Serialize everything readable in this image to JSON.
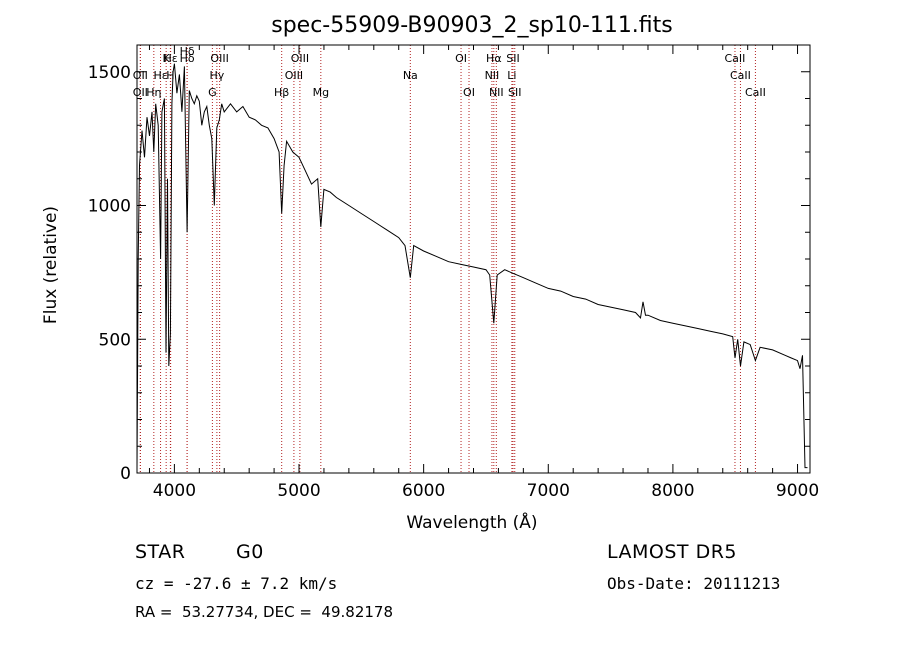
{
  "chart_data": {
    "type": "line",
    "title": "spec-55909-B90903_2_sp10-111.fits",
    "xlabel": "Wavelength (Å)",
    "ylabel": "Flux (relative)",
    "xlim": [
      3700,
      9100
    ],
    "ylim": [
      0,
      1600
    ],
    "x_ticks": [
      4000,
      5000,
      6000,
      7000,
      8000,
      9000
    ],
    "x_tick_labels": [
      "4000",
      "5000",
      "6000",
      "7000",
      "8000",
      "9000"
    ],
    "y_ticks": [
      0,
      500,
      1000,
      1500
    ],
    "y_tick_labels": [
      "0",
      "500",
      "1000",
      "1500"
    ],
    "line_color": "#000000",
    "marker_color": "#b22222",
    "grid": false,
    "series": [
      {
        "x": [
          3700,
          3710,
          3720,
          3740,
          3760,
          3780,
          3800,
          3820,
          3835,
          3850,
          3870,
          3889,
          3900,
          3920,
          3933,
          3945,
          3955,
          3968,
          3980,
          3990,
          4000,
          4020,
          4040,
          4060,
          4080,
          4102,
          4120,
          4140,
          4160,
          4180,
          4200,
          4220,
          4240,
          4260,
          4280,
          4300,
          4320,
          4340,
          4360,
          4380,
          4400,
          4450,
          4500,
          4550,
          4600,
          4650,
          4700,
          4750,
          4800,
          4840,
          4861,
          4880,
          4900,
          4950,
          5000,
          5050,
          5100,
          5150,
          5175,
          5200,
          5250,
          5300,
          5400,
          5500,
          5600,
          5700,
          5800,
          5850,
          5893,
          5920,
          6000,
          6100,
          6200,
          6300,
          6400,
          6500,
          6530,
          6563,
          6590,
          6650,
          6700,
          6800,
          6900,
          7000,
          7100,
          7200,
          7300,
          7400,
          7500,
          7600,
          7700,
          7740,
          7760,
          7780,
          7800,
          7900,
          8000,
          8100,
          8200,
          8300,
          8400,
          8480,
          8498,
          8520,
          8542,
          8570,
          8620,
          8662,
          8700,
          8800,
          8900,
          8950,
          9000,
          9020,
          9040,
          9060,
          9080
        ],
        "values": [
          20,
          800,
          1150,
          1280,
          1180,
          1330,
          1260,
          1350,
          1200,
          1380,
          1300,
          800,
          1350,
          1400,
          450,
          1100,
          400,
          520,
          1380,
          1500,
          1530,
          1420,
          1490,
          1350,
          1520,
          900,
          1430,
          1400,
          1380,
          1410,
          1390,
          1300,
          1350,
          1370,
          1300,
          1250,
          1000,
          1290,
          1320,
          1380,
          1350,
          1380,
          1350,
          1370,
          1330,
          1320,
          1300,
          1290,
          1250,
          1200,
          970,
          1150,
          1240,
          1200,
          1180,
          1130,
          1080,
          1100,
          920,
          1060,
          1050,
          1030,
          1000,
          970,
          940,
          910,
          880,
          850,
          730,
          850,
          830,
          810,
          790,
          780,
          770,
          760,
          740,
          560,
          740,
          760,
          750,
          730,
          710,
          690,
          680,
          660,
          650,
          630,
          620,
          610,
          600,
          580,
          640,
          590,
          590,
          570,
          560,
          550,
          540,
          530,
          520,
          510,
          430,
          500,
          400,
          490,
          480,
          420,
          470,
          460,
          440,
          430,
          420,
          390,
          440,
          20,
          20
        ]
      }
    ],
    "line_markers": [
      {
        "name": "Hδ",
        "x": 4102,
        "row": 1
      },
      {
        "name": "K",
        "x": 3934,
        "row": 1
      },
      {
        "name": "Hε",
        "x": 3970,
        "row": 1
      },
      {
        "name": "OII",
        "x": 3727,
        "row": 2
      },
      {
        "name": "Hε",
        "x": 3889,
        "row": 2
      },
      {
        "name": "H",
        "x": 3968,
        "row": 2
      },
      {
        "name": "OII",
        "x": 3727,
        "row": 3
      },
      {
        "name": "Hη",
        "x": 3835,
        "row": 3
      },
      {
        "name": "Hδ",
        "x": 4102,
        "row": 0
      },
      {
        "name": "OIII",
        "x": 4363,
        "row": 1
      },
      {
        "name": "Hγ",
        "x": 4341,
        "row": 2
      },
      {
        "name": "G",
        "x": 4305,
        "row": 3
      },
      {
        "name": "OIII",
        "x": 5007,
        "row": 1
      },
      {
        "name": "OIII",
        "x": 4959,
        "row": 2
      },
      {
        "name": "Hβ",
        "x": 4861,
        "row": 3
      },
      {
        "name": "Mg",
        "x": 5175,
        "row": 3
      },
      {
        "name": "Na",
        "x": 5893,
        "row": 2
      },
      {
        "name": "OI",
        "x": 6300,
        "row": 1
      },
      {
        "name": "OI",
        "x": 6364,
        "row": 3
      },
      {
        "name": "Hα",
        "x": 6563,
        "row": 1
      },
      {
        "name": "SII",
        "x": 6717,
        "row": 1
      },
      {
        "name": "NII",
        "x": 6548,
        "row": 2
      },
      {
        "name": "Li",
        "x": 6708,
        "row": 2
      },
      {
        "name": "NII",
        "x": 6583,
        "row": 3
      },
      {
        "name": "SII",
        "x": 6731,
        "row": 3
      },
      {
        "name": "CaII",
        "x": 8498,
        "row": 1
      },
      {
        "name": "CaII",
        "x": 8542,
        "row": 2
      },
      {
        "name": "CaII",
        "x": 8662,
        "row": 3
      }
    ]
  },
  "info": {
    "class_label": "STAR",
    "subclass": "G0",
    "survey": "LAMOST DR5",
    "redshift": "cz = -27.6 ± 7.2 km/s",
    "obs_date": "Obs-Date: 20111213",
    "coords": "RA =  53.27734, DEC =  49.82178"
  }
}
